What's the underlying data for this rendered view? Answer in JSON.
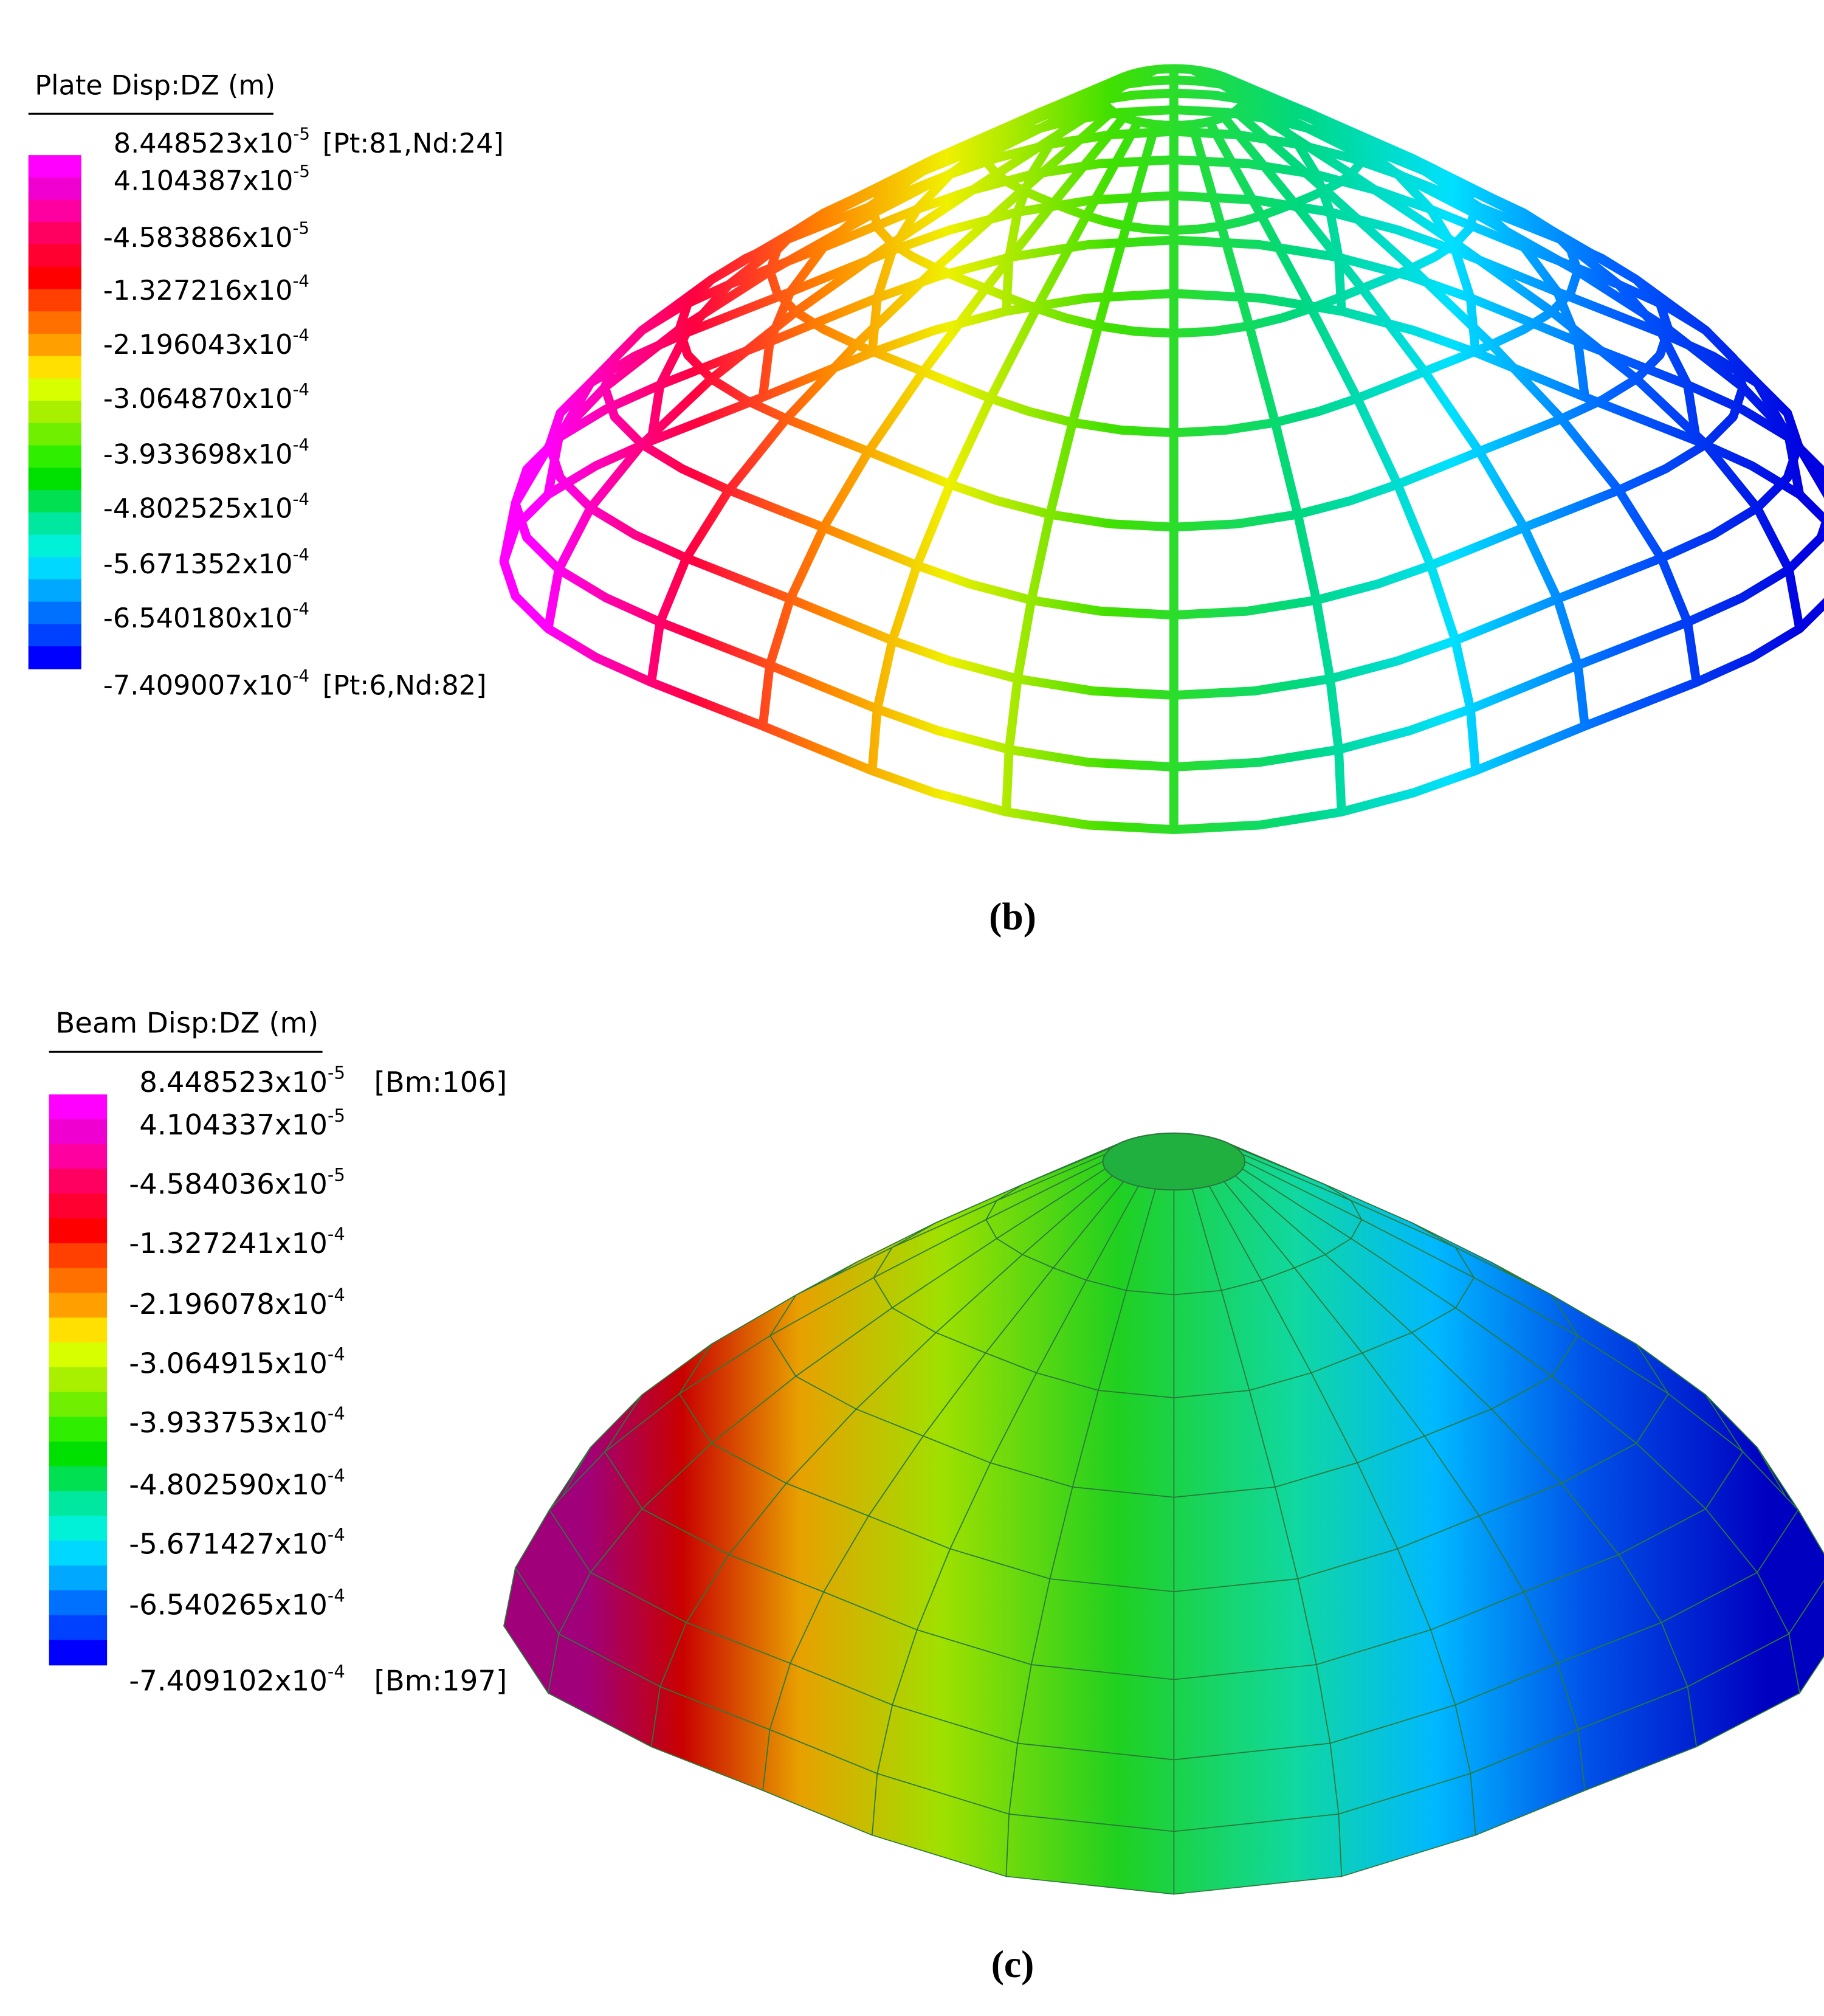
{
  "panels": [
    {
      "legend_title": "Plate Disp:DZ  (m)",
      "labels": [
        {
          "base": "8.448523x10",
          "exp": "-5",
          "note": "[Pt:81,Nd:24]"
        },
        {
          "base": "4.104387x10",
          "exp": "-5"
        },
        {
          "base": "-4.583886x10",
          "exp": "-5"
        },
        {
          "base": "-1.327216x10",
          "exp": "-4"
        },
        {
          "base": "-2.196043x10",
          "exp": "-4"
        },
        {
          "base": "-3.064870x10",
          "exp": "-4"
        },
        {
          "base": "-3.933698x10",
          "exp": "-4"
        },
        {
          "base": "-4.802525x10",
          "exp": "-4"
        },
        {
          "base": "-5.671352x10",
          "exp": "-4"
        },
        {
          "base": "-6.540180x10",
          "exp": "-4"
        },
        {
          "base": "-7.409007x10",
          "exp": "-4",
          "note": "[Pt:6,Nd:82]"
        }
      ],
      "caption": "(b)"
    },
    {
      "legend_title": "Beam Disp:DZ  (m)",
      "labels": [
        {
          "base": "8.448523x10",
          "exp": "-5",
          "note": "[Bm:106]"
        },
        {
          "base": "4.104337x10",
          "exp": "-5"
        },
        {
          "base": "-4.584036x10",
          "exp": "-5"
        },
        {
          "base": "-1.327241x10",
          "exp": "-4"
        },
        {
          "base": "-2.196078x10",
          "exp": "-4"
        },
        {
          "base": "-3.064915x10",
          "exp": "-4"
        },
        {
          "base": "-3.933753x10",
          "exp": "-4"
        },
        {
          "base": "-4.802590x10",
          "exp": "-4"
        },
        {
          "base": "-5.671427x10",
          "exp": "-4"
        },
        {
          "base": "-6.540265x10",
          "exp": "-4"
        },
        {
          "base": "-7.409102x10",
          "exp": "-4",
          "note": "[Bm:197]"
        }
      ],
      "caption": "(c)"
    }
  ]
}
